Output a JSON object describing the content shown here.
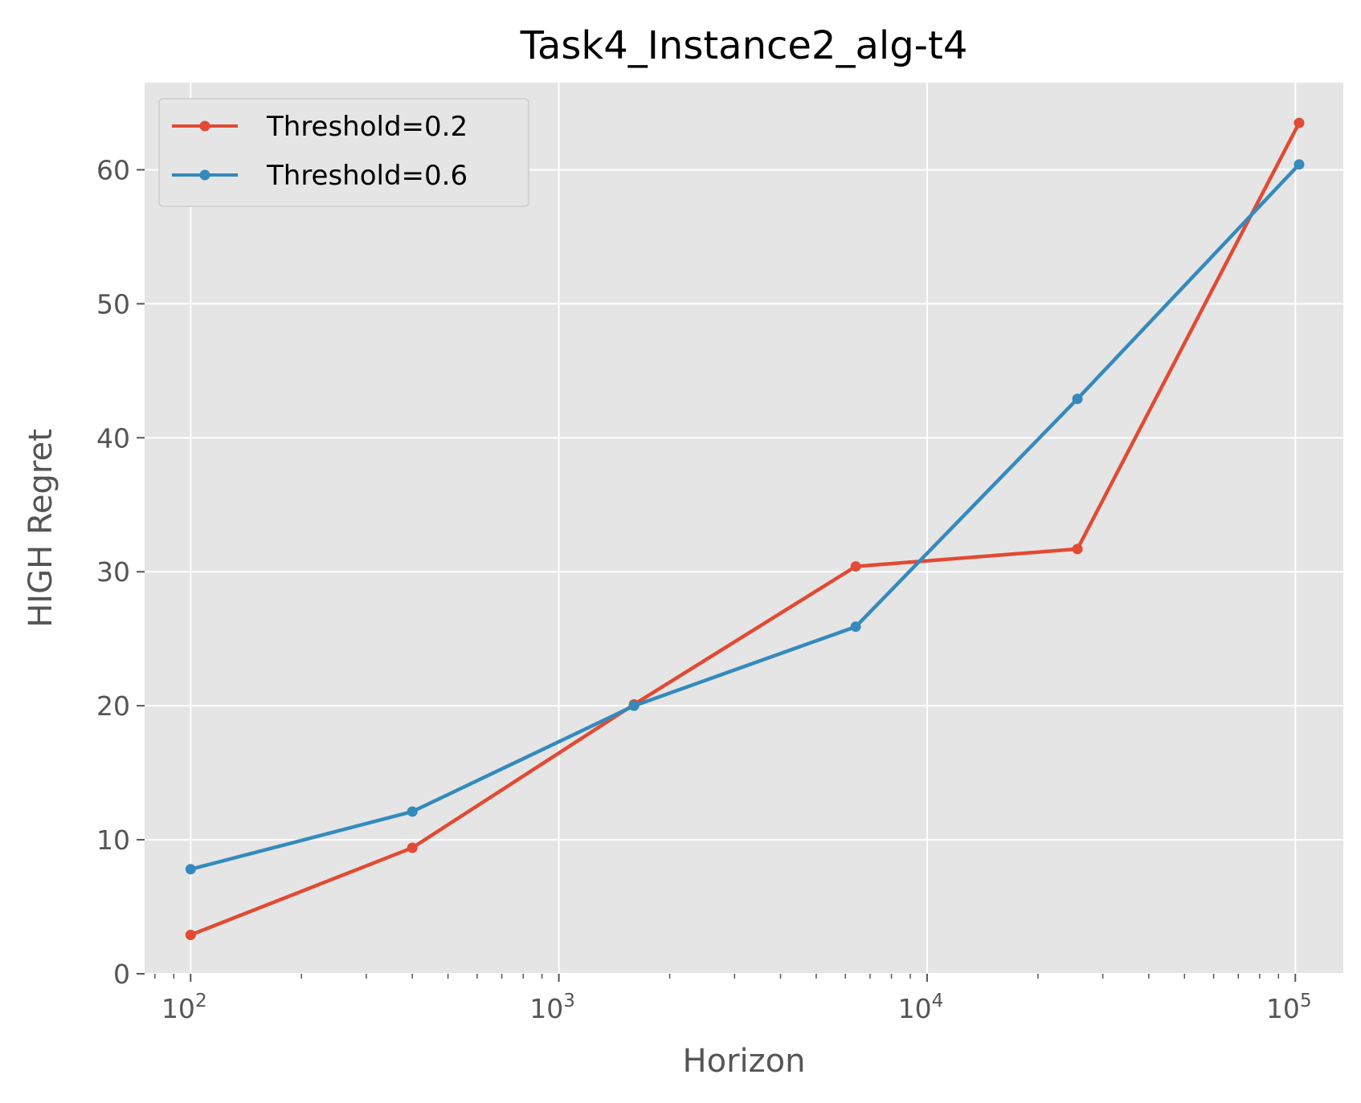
{
  "chart_data": {
    "type": "line",
    "title": "Task4_Instance2_alg-t4",
    "xlabel": "Horizon",
    "ylabel": "HIGH Regret",
    "xscale": "log",
    "xlim": [
      75,
      135000
    ],
    "ylim": [
      0,
      66.5
    ],
    "grid": true,
    "legend_position": "upper-left",
    "x": [
      100,
      400,
      1600,
      6400,
      25600,
      102400
    ],
    "x_ticks": [
      {
        "value": 100,
        "base": "10",
        "exp": "2"
      },
      {
        "value": 1000,
        "base": "10",
        "exp": "3"
      },
      {
        "value": 10000,
        "base": "10",
        "exp": "4"
      },
      {
        "value": 100000,
        "base": "10",
        "exp": "5"
      }
    ],
    "y_ticks": [
      "0",
      "10",
      "20",
      "30",
      "40",
      "50",
      "60"
    ],
    "series": [
      {
        "name": "Threshold=0.2",
        "color": "#E24A33",
        "values": [
          2.9,
          9.4,
          20.1,
          30.4,
          31.7,
          63.5
        ]
      },
      {
        "name": "Threshold=0.6",
        "color": "#348ABD",
        "values": [
          7.8,
          12.1,
          20.0,
          25.9,
          42.9,
          60.4
        ]
      }
    ]
  },
  "style": {
    "plot_background": "#E5E5E5",
    "grid_color": "#FFFFFF"
  }
}
